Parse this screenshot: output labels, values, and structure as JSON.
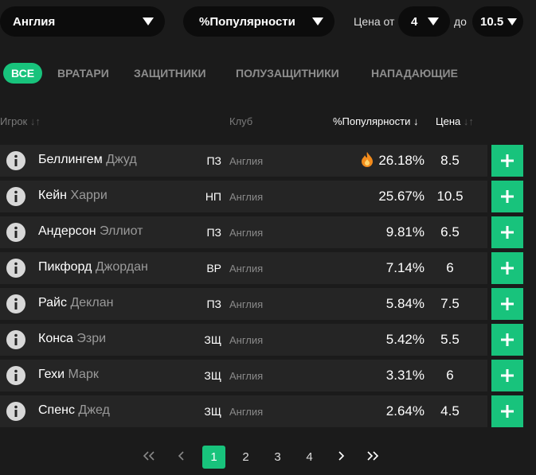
{
  "filters": {
    "country": "Англия",
    "sort": "%Популярности",
    "price_from_label": "Цена от",
    "price_from": "4",
    "price_to_label": "до",
    "price_to": "10.5"
  },
  "tabs": [
    "ВСЕ",
    "ВРАТАРИ",
    "ЗАЩИТНИКИ",
    "ПОЛУЗАЩИТНИКИ",
    "НАПАДАЮЩИЕ"
  ],
  "table": {
    "headers": {
      "player": "Игрок",
      "club": "Клуб",
      "popularity": "%Популярности",
      "price": "Цена"
    },
    "rows": [
      {
        "last_name": "Беллингем",
        "first_name": "Джуд",
        "position": "ПЗ",
        "club": "Англия",
        "popularity": "26.18%",
        "price": "8.5"
      },
      {
        "last_name": "Кейн",
        "first_name": "Харри",
        "position": "НП",
        "club": "Англия",
        "popularity": "25.67%",
        "price": "10.5"
      },
      {
        "last_name": "Андерсон",
        "first_name": "Эллиот",
        "position": "ПЗ",
        "club": "Англия",
        "popularity": "9.81%",
        "price": "6.5"
      },
      {
        "last_name": "Пикфорд",
        "first_name": "Джордан",
        "position": "ВР",
        "club": "Англия",
        "popularity": "7.14%",
        "price": "6"
      },
      {
        "last_name": "Райс",
        "first_name": "Деклан",
        "position": "ПЗ",
        "club": "Англия",
        "popularity": "5.84%",
        "price": "7.5"
      },
      {
        "last_name": "Конса",
        "first_name": "Эзри",
        "position": "ЗЩ",
        "club": "Англия",
        "popularity": "5.42%",
        "price": "5.5"
      },
      {
        "last_name": "Гехи",
        "first_name": "Марк",
        "position": "ЗЩ",
        "club": "Англия",
        "popularity": "3.31%",
        "price": "6"
      },
      {
        "last_name": "Спенс",
        "first_name": "Джед",
        "position": "ЗЩ",
        "club": "Англия",
        "popularity": "2.64%",
        "price": "4.5"
      }
    ]
  },
  "pagination": {
    "pages": [
      "1",
      "2",
      "3",
      "4"
    ],
    "current": "1"
  }
}
